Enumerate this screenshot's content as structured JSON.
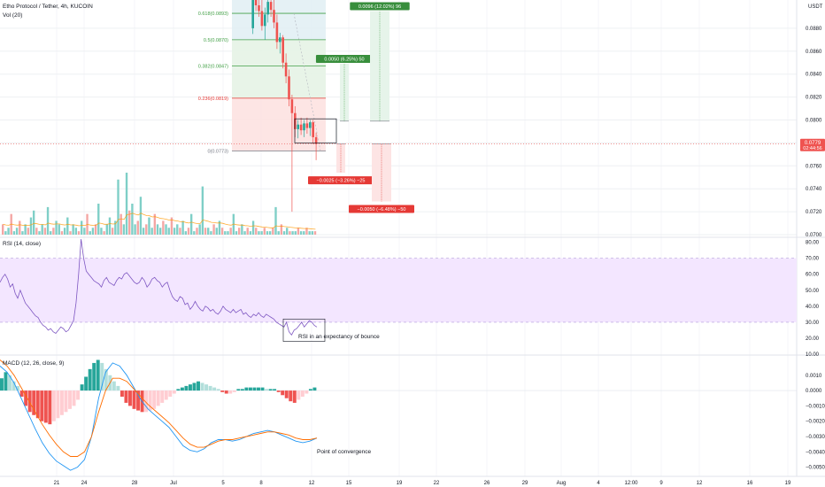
{
  "header": {
    "title": "Etho Protocol / Tether, 4h, KUCOIN",
    "vol_label": "Vol (20)",
    "currency": "USDT"
  },
  "colors": {
    "up": "#26a69a",
    "down": "#ef5350",
    "fib_green": "#43a047",
    "fib_red": "#e53935",
    "rsi": "#7e57c2",
    "rsi_band": "#f3e6ff",
    "macd_line": "#2196f3",
    "signal_line": "#ff6d00",
    "grid": "#eef0f3"
  },
  "chart_data": [
    {
      "type": "candlestick",
      "title": "Etho Protocol / Tether, 4h, KUCOIN",
      "ylim": [
        0.07,
        0.09
      ],
      "y_ticks": [
        "0.0880",
        "0.0860",
        "0.0840",
        "0.0820",
        "0.0800",
        "0.0780",
        "0.0760",
        "0.0740",
        "0.0720",
        "0.0700"
      ],
      "last_price": "0.0779",
      "countdown": "02:44:56",
      "fib_levels": [
        {
          "label": "0.618(0.0893)",
          "price": 0.0893
        },
        {
          "label": "0.5(0.0870)",
          "price": 0.087
        },
        {
          "label": "0.382(0.0847)",
          "price": 0.0847
        },
        {
          "label": "0.236(0.0819)",
          "price": 0.0819
        },
        {
          "label": "0(0.0773)",
          "price": 0.0773
        }
      ],
      "candles": [
        {
          "o": 0.088,
          "h": 0.092,
          "l": 0.0875,
          "c": 0.0905
        },
        {
          "o": 0.0905,
          "h": 0.0915,
          "l": 0.0895,
          "c": 0.09
        },
        {
          "o": 0.09,
          "h": 0.0912,
          "l": 0.089,
          "c": 0.0895
        },
        {
          "o": 0.0895,
          "h": 0.0905,
          "l": 0.0878,
          "c": 0.0882
        },
        {
          "o": 0.0882,
          "h": 0.0898,
          "l": 0.087,
          "c": 0.0892
        },
        {
          "o": 0.0892,
          "h": 0.091,
          "l": 0.0885,
          "c": 0.0903
        },
        {
          "o": 0.0903,
          "h": 0.0912,
          "l": 0.089,
          "c": 0.0896
        },
        {
          "o": 0.0896,
          "h": 0.0906,
          "l": 0.088,
          "c": 0.0885
        },
        {
          "o": 0.0885,
          "h": 0.0892,
          "l": 0.0862,
          "c": 0.0868
        },
        {
          "o": 0.0868,
          "h": 0.0876,
          "l": 0.0858,
          "c": 0.0872
        },
        {
          "o": 0.0872,
          "h": 0.0874,
          "l": 0.0845,
          "c": 0.085
        },
        {
          "o": 0.085,
          "h": 0.0858,
          "l": 0.0832,
          "c": 0.0838
        },
        {
          "o": 0.0838,
          "h": 0.0844,
          "l": 0.0812,
          "c": 0.0818
        },
        {
          "o": 0.0818,
          "h": 0.0822,
          "l": 0.072,
          "c": 0.0806
        },
        {
          "o": 0.0806,
          "h": 0.0812,
          "l": 0.0785,
          "c": 0.0792
        },
        {
          "o": 0.0792,
          "h": 0.08,
          "l": 0.0784,
          "c": 0.0796
        },
        {
          "o": 0.0796,
          "h": 0.0802,
          "l": 0.0787,
          "c": 0.0791
        },
        {
          "o": 0.0791,
          "h": 0.08,
          "l": 0.0785,
          "c": 0.0797
        },
        {
          "o": 0.0797,
          "h": 0.0802,
          "l": 0.0788,
          "c": 0.0793
        },
        {
          "o": 0.0793,
          "h": 0.08,
          "l": 0.0786,
          "c": 0.0798
        },
        {
          "o": 0.0798,
          "h": 0.08,
          "l": 0.0779,
          "c": 0.0785
        },
        {
          "o": 0.0785,
          "h": 0.0789,
          "l": 0.0765,
          "c": 0.0779
        }
      ],
      "volume_label": "Vol (20)",
      "volume": [
        3,
        1,
        2,
        6,
        1,
        2,
        4,
        1,
        3,
        2,
        5,
        7,
        2,
        1,
        3,
        2,
        8,
        1,
        2,
        4,
        3,
        1,
        2,
        5,
        1,
        3,
        2,
        1,
        4,
        2,
        6,
        1,
        2,
        3,
        9,
        2,
        1,
        3,
        5,
        2,
        4,
        16,
        6,
        3,
        18,
        7,
        9,
        3,
        4,
        11,
        2,
        3,
        5,
        2,
        6,
        3,
        2,
        4,
        3,
        2,
        5,
        2,
        3,
        2,
        4,
        1,
        2,
        6,
        1,
        2,
        3,
        14,
        2,
        2,
        1,
        3,
        2,
        4,
        2,
        1,
        1,
        2,
        6,
        1,
        2,
        3,
        1,
        2,
        1,
        4,
        2,
        1,
        1,
        2,
        1,
        1,
        2,
        8,
        1,
        3,
        1,
        2,
        1,
        1,
        1,
        2,
        1,
        1,
        2,
        1,
        1,
        1
      ],
      "annotations": [
        {
          "text": "0.0050 (6.25%) 50",
          "kind": "long"
        },
        {
          "text": "0.0096 (12.02%) 96",
          "kind": "long"
        },
        {
          "text": "−0.0025 (−3.26%) −25",
          "kind": "short"
        },
        {
          "text": "−0.0050 (−6.48%) −50",
          "kind": "short"
        }
      ]
    },
    {
      "type": "line",
      "title": "RSI (14, close)",
      "ylim": [
        10,
        82
      ],
      "y_ticks": [
        "80.00",
        "70.00",
        "60.00",
        "50.00",
        "40.00",
        "30.00",
        "20.00",
        "10.00"
      ],
      "band": [
        30,
        70
      ],
      "values": [
        55,
        58,
        60,
        57,
        52,
        54,
        48,
        45,
        50,
        46,
        42,
        40,
        38,
        36,
        34,
        33,
        30,
        28,
        27,
        25,
        26,
        24,
        23,
        25,
        27,
        26,
        24,
        25,
        28,
        31,
        42,
        60,
        82,
        70,
        62,
        60,
        58,
        56,
        55,
        54,
        52,
        56,
        58,
        55,
        54,
        53,
        56,
        58,
        57,
        60,
        61,
        59,
        57,
        55,
        54,
        55,
        58,
        56,
        52,
        54,
        57,
        58,
        56,
        55,
        52,
        54,
        55,
        50,
        46,
        44,
        43,
        46,
        45,
        41,
        42,
        38,
        40,
        43,
        40,
        38,
        37,
        40,
        39,
        37,
        38,
        36,
        35,
        37,
        40,
        38,
        37,
        36,
        38,
        36,
        37,
        38,
        35,
        36,
        34,
        33,
        35,
        34,
        36,
        34,
        33,
        35,
        34,
        33,
        32,
        30,
        29,
        28,
        27,
        30,
        24,
        22,
        25,
        26,
        28,
        30,
        27,
        29,
        31,
        30,
        28,
        27
      ],
      "annotation": "RSI in an expectancy of bounce"
    },
    {
      "type": "histogram+line",
      "title": "MACD (12, 26, close, 9)",
      "ylim": [
        -0.0056,
        0.0022
      ],
      "y_ticks": [
        "0.0010",
        "0.0000",
        "−0.0010",
        "−0.0020",
        "−0.0030",
        "−0.0040",
        "−0.0050"
      ],
      "histogram": [
        0.0008,
        0.0012,
        0.001,
        0.0006,
        0.0003,
        -0.0004,
        -0.001,
        -0.0014,
        -0.0016,
        -0.0018,
        -0.002,
        -0.0021,
        -0.0022,
        -0.002,
        -0.0018,
        -0.0016,
        -0.0014,
        -0.0012,
        -0.001,
        -0.0006,
        0.0004,
        0.0009,
        0.0014,
        0.0018,
        0.002,
        0.0018,
        0.0014,
        0.001,
        0.0006,
        0.0003,
        -0.0004,
        -0.0008,
        -0.001,
        -0.0012,
        -0.0013,
        -0.0014,
        -0.0014,
        -0.0013,
        -0.0012,
        -0.001,
        -0.0008,
        -0.0006,
        -0.0004,
        -0.0002,
        0.0001,
        0.0002,
        0.0003,
        0.0004,
        0.0005,
        0.0006,
        0.0005,
        0.0004,
        0.0003,
        0.0002,
        0.0001,
        -0.0001,
        -0.0002,
        -0.0002,
        -0.0001,
        0.0001,
        0.0001,
        0.0002,
        0.0002,
        0.0002,
        0.0002,
        0.0002,
        0.0001,
        0.0001,
        0.0001,
        -0.0001,
        -0.0003,
        -0.0005,
        -0.0007,
        -0.0008,
        -0.0006,
        -0.0004,
        -0.0002,
        0.0001,
        0.0002
      ],
      "macd": [
        0.0016,
        0.0012,
        0.0005,
        -0.0005,
        -0.0015,
        -0.0025,
        -0.0034,
        -0.0041,
        -0.0046,
        -0.0049,
        -0.0052,
        -0.005,
        -0.0045,
        -0.003,
        -0.0005,
        0.0012,
        0.0018,
        0.0016,
        0.001,
        0.0002,
        -0.0006,
        -0.0012,
        -0.0016,
        -0.002,
        -0.0024,
        -0.003,
        -0.0036,
        -0.0039,
        -0.004,
        -0.0038,
        -0.0034,
        -0.0032,
        -0.0032,
        -0.0033,
        -0.0032,
        -0.003,
        -0.0028,
        -0.0027,
        -0.0026,
        -0.0027,
        -0.0029,
        -0.0031,
        -0.0033,
        -0.0034,
        -0.0033,
        -0.0031
      ],
      "signal": [
        0.002,
        0.0016,
        0.001,
        0.0002,
        -0.0006,
        -0.0014,
        -0.0022,
        -0.0029,
        -0.0035,
        -0.004,
        -0.0043,
        -0.0043,
        -0.004,
        -0.003,
        -0.0014,
        0.0,
        0.0008,
        0.0008,
        0.0006,
        0.0001,
        -0.0004,
        -0.0009,
        -0.0013,
        -0.0017,
        -0.0021,
        -0.0026,
        -0.0031,
        -0.0035,
        -0.0037,
        -0.0037,
        -0.0035,
        -0.0033,
        -0.0032,
        -0.0032,
        -0.0031,
        -0.003,
        -0.0029,
        -0.0028,
        -0.0027,
        -0.0027,
        -0.0028,
        -0.0029,
        -0.0031,
        -0.0032,
        -0.0032,
        -0.0031
      ],
      "annotation": "Point of convergence"
    }
  ],
  "x_axis": {
    "ticks": [
      "21",
      "24",
      "28",
      "Jul",
      "5",
      "8",
      "12",
      "15",
      "19",
      "22",
      "26",
      "29",
      "Aug",
      "4",
      "12:00",
      "9",
      "12",
      "16",
      "19"
    ]
  }
}
